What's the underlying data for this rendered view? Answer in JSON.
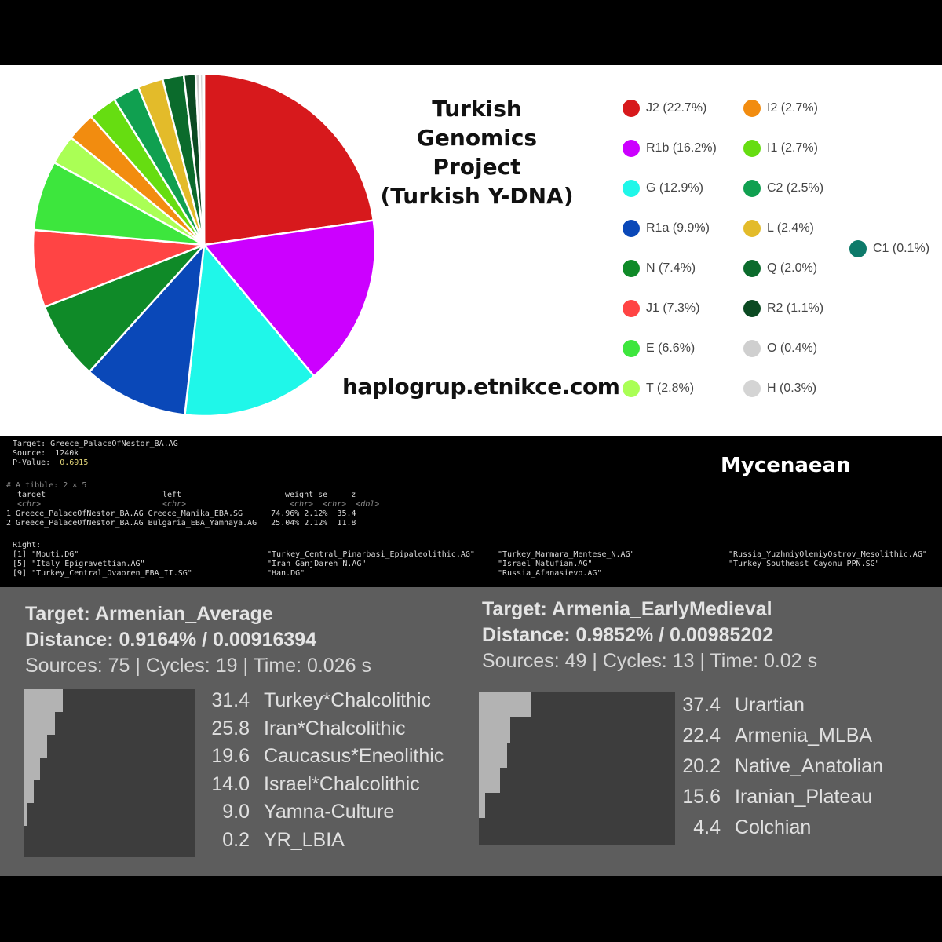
{
  "chart_data": [
    {
      "type": "pie",
      "title_lines": [
        "Turkish Genomics",
        "Project",
        "(Turkish Y-DNA)"
      ],
      "slices": [
        {
          "label": "J2 (22.7%)",
          "value": 22.7,
          "color": "#d7191c"
        },
        {
          "label": "R1b (16.2%)",
          "value": 16.2,
          "color": "#cc00ff"
        },
        {
          "label": "G (12.9%)",
          "value": 12.9,
          "color": "#1ff7e9"
        },
        {
          "label": "R1a (9.9%)",
          "value": 9.9,
          "color": "#0a48b8"
        },
        {
          "label": "N (7.4%)",
          "value": 7.4,
          "color": "#0f8a28"
        },
        {
          "label": "J1 (7.3%)",
          "value": 7.3,
          "color": "#ff4444"
        },
        {
          "label": "E (6.6%)",
          "value": 6.6,
          "color": "#3de63d"
        },
        {
          "label": "T (2.8%)",
          "value": 2.8,
          "color": "#aaff55"
        },
        {
          "label": "I2 (2.7%)",
          "value": 2.7,
          "color": "#f28c0f"
        },
        {
          "label": "I1 (2.7%)",
          "value": 2.7,
          "color": "#66dd11"
        },
        {
          "label": "C2 (2.5%)",
          "value": 2.5,
          "color": "#10a050"
        },
        {
          "label": "L (2.4%)",
          "value": 2.4,
          "color": "#e3bb2a"
        },
        {
          "label": "Q (2.0%)",
          "value": 2.0,
          "color": "#0b6b2c"
        },
        {
          "label": "R2 (1.1%)",
          "value": 1.1,
          "color": "#0b4a22"
        },
        {
          "label": "O (0.4%)",
          "value": 0.4,
          "color": "#cfcfcf"
        },
        {
          "label": "H (0.3%)",
          "value": 0.3,
          "color": "#d4d4d4"
        },
        {
          "label": "C1 (0.1%)",
          "value": 0.1,
          "color": "#0d7a6a"
        }
      ]
    },
    {
      "type": "bar",
      "title": "Target: Armenian_Average",
      "distance": "Distance: 0.9164% / 0.00916394",
      "meta": "Sources: 75 | Cycles: 19 | Time: 0.026 s",
      "rows": [
        {
          "value": 31.4,
          "value_text": "31.4",
          "label": "Turkey*Chalcolithic"
        },
        {
          "value": 25.8,
          "value_text": "25.8",
          "label": "Iran*Chalcolithic"
        },
        {
          "value": 19.6,
          "value_text": "19.6",
          "label": "Caucasus*Eneolithic"
        },
        {
          "value": 14.0,
          "value_text": "14.0",
          "label": "Israel*Chalcolithic"
        },
        {
          "value": 9.0,
          "value_text": "9.0",
          "label": "Yamna-Culture"
        },
        {
          "value": 0.2,
          "value_text": "0.2",
          "label": "YR_LBIA"
        }
      ]
    },
    {
      "type": "bar",
      "title": "Target: Armenia_EarlyMedieval",
      "distance": "Distance: 0.9852% / 0.00985202",
      "meta": "Sources: 49 | Cycles: 13 | Time: 0.02 s",
      "rows": [
        {
          "value": 37.4,
          "value_text": "37.4",
          "label": "Urartian"
        },
        {
          "value": 22.4,
          "value_text": "22.4",
          "label": "Armenia_MLBA"
        },
        {
          "value": 20.2,
          "value_text": "20.2",
          "label": "Native_Anatolian"
        },
        {
          "value": 15.6,
          "value_text": "15.6",
          "label": "Iranian_Plateau"
        },
        {
          "value": 4.4,
          "value_text": "4.4",
          "label": "Colchian"
        }
      ]
    }
  ],
  "site_url": "haplogrup.etnikce.com",
  "console": {
    "target": "Target: Greece_PalaceOfNestor_BA.AG",
    "source": "Source:  1240k",
    "pvalue_label": "P-Value:",
    "pvalue": "0.6915",
    "tibble": "# A tibble: 2 × 5",
    "col_target": "target",
    "col_left": "left",
    "col_rest": "weight se     z",
    "type_target": "<chr>",
    "type_left": "<chr>",
    "type_rest": "<chr>  <chr>  <dbl>",
    "row1": "1 Greece_PalaceOfNestor_BA.AG Greece_Manika_EBA.SG      74.96% 2.12%  35.4",
    "row2": "2 Greece_PalaceOfNestor_BA.AG Bulgaria_EBA_Yamnaya.AG   25.04% 2.12%  11.8",
    "right_label": "Right:",
    "right": [
      [
        "[1] \"Mbuti.DG\"",
        "\"Turkey_Central_Pinarbasi_Epipaleolithic.AG\"",
        "\"Turkey_Marmara_Mentese_N.AG\"",
        "\"Russia_YuzhniyOleniyOstrov_Mesolithic.AG\""
      ],
      [
        "[5] \"Italy_Epigravettian.AG\"",
        "\"Iran_GanjDareh_N.AG\"",
        "\"Israel_Natufian.AG\"",
        "\"Turkey_Southeast_Cayonu_PPN.SG\""
      ],
      [
        "[9] \"Turkey_Central_Ovaoren_EBA_II.SG\"",
        "\"Han.DG\"",
        "\"Russia_Afanasievo.AG\"",
        ""
      ]
    ]
  },
  "mycenaean_label": "Mycenaean"
}
